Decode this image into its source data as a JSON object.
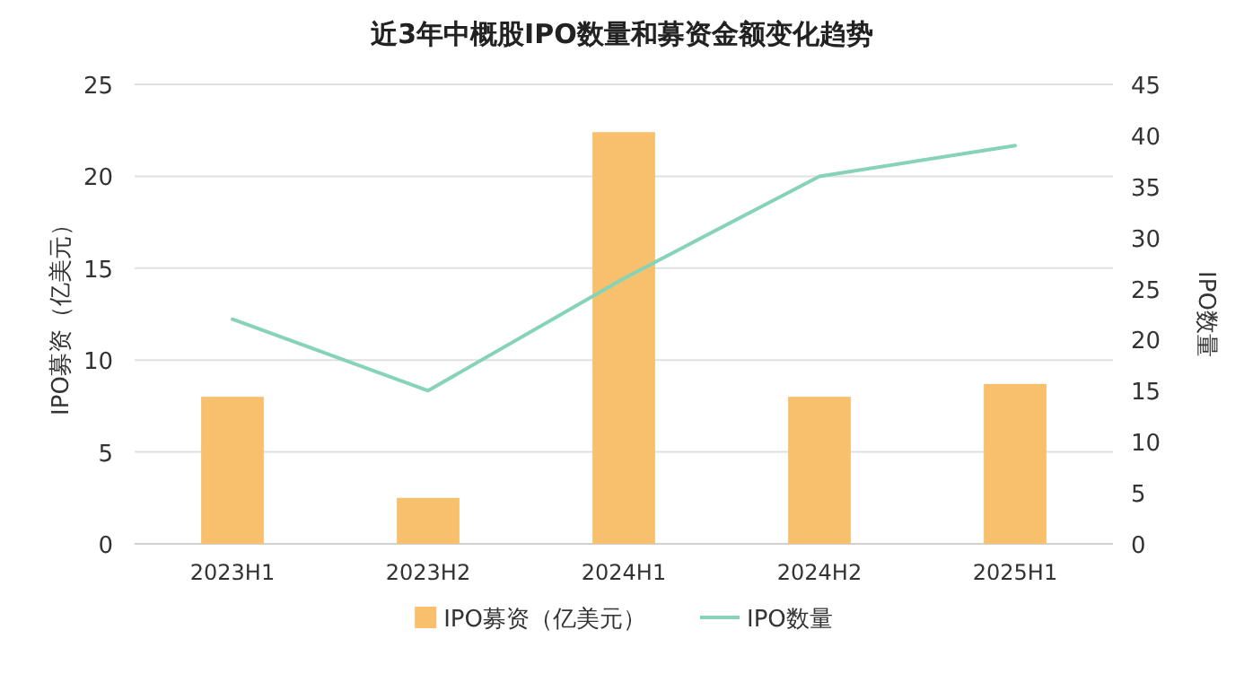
{
  "chart_data": {
    "type": "bar",
    "title": "近3年中概股IPO数量和募资金额变化趋势",
    "ylabel": "IPO募资（亿美元）",
    "y2label": "IPO数量",
    "categories": [
      "2023H1",
      "2023H2",
      "2024H1",
      "2024H2",
      "2025H1"
    ],
    "series": [
      {
        "name": "IPO募资（亿美元）",
        "color": "#f8bf6c",
        "values": [
          8.0,
          2.5,
          22.4,
          8.0,
          8.7
        ]
      },
      {
        "name": "IPO数量",
        "type": "line",
        "axis": "y2",
        "color": "#86d3b8",
        "values": [
          22,
          15,
          26,
          36,
          39
        ]
      }
    ],
    "ylim": [
      0,
      25
    ],
    "yticks": [
      0,
      5,
      10,
      15,
      20,
      25
    ],
    "y2lim": [
      0,
      45
    ],
    "y2ticks": [
      0,
      5,
      10,
      15,
      20,
      25,
      30,
      35,
      40,
      45
    ],
    "grid": "y",
    "legend": "bottom",
    "marker": "none"
  }
}
